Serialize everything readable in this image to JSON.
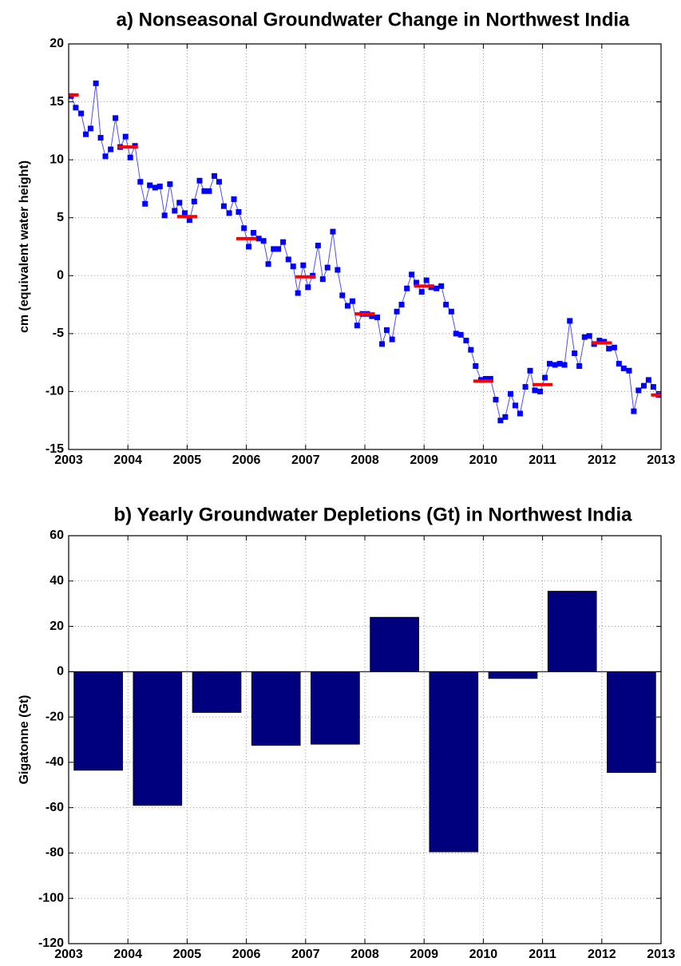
{
  "chart_data": [
    {
      "type": "line",
      "title": "a) Nonseasonal Groundwater Change in Northwest India",
      "ylabel": "cm (equivalent water height)",
      "xlim": [
        2003,
        2013
      ],
      "xticks": [
        2003,
        2004,
        2005,
        2006,
        2007,
        2008,
        2009,
        2010,
        2011,
        2012,
        2013
      ],
      "ylim": [
        -15,
        20
      ],
      "yticks": [
        -15,
        -10,
        -5,
        0,
        5,
        10,
        15,
        20
      ],
      "grid": true,
      "series": [
        {
          "color": "#0000ff",
          "style": "line-markers",
          "x": [
            2003.04,
            2003.12,
            2003.21,
            2003.29,
            2003.37,
            2003.46,
            2003.54,
            2003.62,
            2003.71,
            2003.79,
            2003.87,
            2003.96,
            2004.04,
            2004.12,
            2004.21,
            2004.29,
            2004.37,
            2004.46,
            2004.54,
            2004.62,
            2004.71,
            2004.79,
            2004.87,
            2004.96,
            2005.04,
            2005.12,
            2005.21,
            2005.29,
            2005.37,
            2005.46,
            2005.54,
            2005.62,
            2005.71,
            2005.79,
            2005.87,
            2005.96,
            2006.04,
            2006.12,
            2006.21,
            2006.29,
            2006.37,
            2006.46,
            2006.54,
            2006.62,
            2006.71,
            2006.79,
            2006.87,
            2006.96,
            2007.04,
            2007.12,
            2007.21,
            2007.29,
            2007.37,
            2007.46,
            2007.54,
            2007.62,
            2007.71,
            2007.79,
            2007.87,
            2007.96,
            2008.04,
            2008.12,
            2008.21,
            2008.29,
            2008.37,
            2008.46,
            2008.54,
            2008.62,
            2008.71,
            2008.79,
            2008.87,
            2008.96,
            2009.04,
            2009.12,
            2009.21,
            2009.29,
            2009.37,
            2009.46,
            2009.54,
            2009.62,
            2009.71,
            2009.79,
            2009.87,
            2009.96,
            2010.04,
            2010.12,
            2010.21,
            2010.29,
            2010.37,
            2010.46,
            2010.54,
            2010.62,
            2010.71,
            2010.79,
            2010.87,
            2010.96,
            2011.04,
            2011.12,
            2011.21,
            2011.29,
            2011.37,
            2011.46,
            2011.54,
            2011.62,
            2011.71,
            2011.79,
            2011.87,
            2011.96,
            2012.04,
            2012.12,
            2012.21,
            2012.29,
            2012.37,
            2012.46,
            2012.54,
            2012.62,
            2012.71,
            2012.79,
            2012.87,
            2012.96
          ],
          "values": [
            15.5,
            14.5,
            14.0,
            12.2,
            12.7,
            16.6,
            11.9,
            10.3,
            10.9,
            13.6,
            11.1,
            12.0,
            10.2,
            11.2,
            8.1,
            6.2,
            7.8,
            7.6,
            7.7,
            5.2,
            7.9,
            5.6,
            6.3,
            5.4,
            4.8,
            6.4,
            8.2,
            7.3,
            7.3,
            8.6,
            8.1,
            6.0,
            5.4,
            6.6,
            5.5,
            4.1,
            2.5,
            3.7,
            3.2,
            3.0,
            1.0,
            2.3,
            2.3,
            2.9,
            1.4,
            0.8,
            -1.5,
            0.9,
            -1.0,
            0.0,
            2.6,
            -0.3,
            0.7,
            3.8,
            0.5,
            -1.7,
            -2.6,
            -2.2,
            -4.3,
            -3.3,
            -3.3,
            -3.5,
            -3.6,
            -5.9,
            -4.7,
            -5.5,
            -3.1,
            -2.5,
            -1.1,
            0.1,
            -0.6,
            -1.4,
            -0.4,
            -1.0,
            -1.1,
            -0.9,
            -2.5,
            -3.1,
            -5.0,
            -5.1,
            -5.6,
            -6.4,
            -7.8,
            -9.0,
            -8.9,
            -8.9,
            -10.7,
            -12.5,
            -12.2,
            -10.2,
            -11.2,
            -11.9,
            -9.6,
            -8.2,
            -9.9,
            -10.0,
            -8.8,
            -7.6,
            -7.7,
            -7.6,
            -7.7,
            -3.9,
            -6.7,
            -7.8,
            -5.3,
            -5.2,
            -5.9,
            -5.6,
            -5.7,
            -6.3,
            -6.2,
            -7.6,
            -8.0,
            -8.2,
            -11.7,
            -9.9,
            -9.5,
            -9.0,
            -9.6,
            -10.3
          ]
        },
        {
          "color": "#ff0000",
          "style": "dash",
          "x": [
            2003,
            2004,
            2005,
            2006,
            2007,
            2008,
            2009,
            2010,
            2011,
            2012,
            2013
          ],
          "values": [
            15.6,
            11.1,
            5.1,
            3.2,
            -0.1,
            -3.3,
            -0.9,
            -9.1,
            -9.4,
            -5.8,
            -10.3
          ]
        }
      ]
    },
    {
      "type": "bar",
      "title": "b) Yearly Groundwater Depletions (Gt) in Northwest India",
      "ylabel": "Gigatonne (Gt)",
      "xlim": [
        2003,
        2013
      ],
      "xticks": [
        2003,
        2004,
        2005,
        2006,
        2007,
        2008,
        2009,
        2010,
        2011,
        2012,
        2013
      ],
      "ylim": [
        -120,
        60
      ],
      "yticks": [
        -120,
        -100,
        -80,
        -60,
        -40,
        -20,
        0,
        20,
        40,
        60
      ],
      "grid": true,
      "color": "#00007f",
      "x": [
        2003.5,
        2004.5,
        2005.5,
        2006.5,
        2007.5,
        2008.5,
        2009.5,
        2010.5,
        2011.5,
        2012.5
      ],
      "values": [
        -43.5,
        -59,
        -18,
        -32.5,
        -32,
        24,
        -79.5,
        -3,
        35.5,
        -44.5
      ]
    }
  ]
}
